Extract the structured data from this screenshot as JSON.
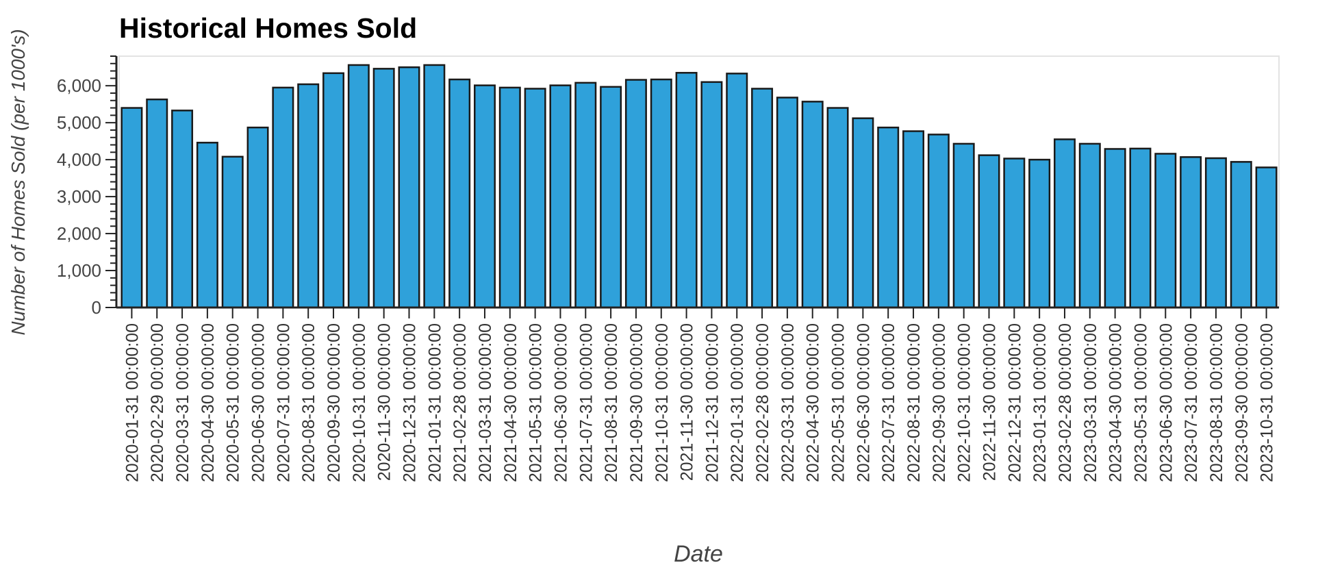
{
  "chart_data": {
    "type": "bar",
    "title": "Historical Homes Sold",
    "xlabel": "Date",
    "ylabel": "Number of Homes Sold (per 1000's)",
    "ylim": [
      0,
      6800
    ],
    "yticks": [
      "0",
      "1,000",
      "2,000",
      "3,000",
      "4,000",
      "5,000",
      "6,000"
    ],
    "grid": false,
    "bar_color": "#2fa1da",
    "bar_edge_color": "#1a1a1a",
    "categories": [
      "2020-01-31 00:00:00",
      "2020-02-29 00:00:00",
      "2020-03-31 00:00:00",
      "2020-04-30 00:00:00",
      "2020-05-31 00:00:00",
      "2020-06-30 00:00:00",
      "2020-07-31 00:00:00",
      "2020-08-31 00:00:00",
      "2020-09-30 00:00:00",
      "2020-10-31 00:00:00",
      "2020-11-30 00:00:00",
      "2020-12-31 00:00:00",
      "2021-01-31 00:00:00",
      "2021-02-28 00:00:00",
      "2021-03-31 00:00:00",
      "2021-04-30 00:00:00",
      "2021-05-31 00:00:00",
      "2021-06-30 00:00:00",
      "2021-07-31 00:00:00",
      "2021-08-31 00:00:00",
      "2021-09-30 00:00:00",
      "2021-10-31 00:00:00",
      "2021-11-30 00:00:00",
      "2021-12-31 00:00:00",
      "2022-01-31 00:00:00",
      "2022-02-28 00:00:00",
      "2022-03-31 00:00:00",
      "2022-04-30 00:00:00",
      "2022-05-31 00:00:00",
      "2022-06-30 00:00:00",
      "2022-07-31 00:00:00",
      "2022-08-31 00:00:00",
      "2022-09-30 00:00:00",
      "2022-10-31 00:00:00",
      "2022-11-30 00:00:00",
      "2022-12-31 00:00:00",
      "2023-01-31 00:00:00",
      "2023-02-28 00:00:00",
      "2023-03-31 00:00:00",
      "2023-04-30 00:00:00",
      "2023-05-31 00:00:00",
      "2023-06-30 00:00:00",
      "2023-07-31 00:00:00",
      "2023-08-31 00:00:00",
      "2023-09-30 00:00:00",
      "2023-10-31 00:00:00"
    ],
    "values": [
      5400,
      5630,
      5330,
      4460,
      4080,
      4870,
      5950,
      6040,
      6340,
      6560,
      6460,
      6500,
      6560,
      6170,
      6010,
      5950,
      5920,
      6010,
      6080,
      5970,
      6160,
      6170,
      6350,
      6100,
      6330,
      5920,
      5680,
      5570,
      5400,
      5120,
      4870,
      4770,
      4680,
      4430,
      4120,
      4030,
      4000,
      4550,
      4430,
      4290,
      4300,
      4160,
      4070,
      4040,
      3940,
      3790
    ]
  }
}
